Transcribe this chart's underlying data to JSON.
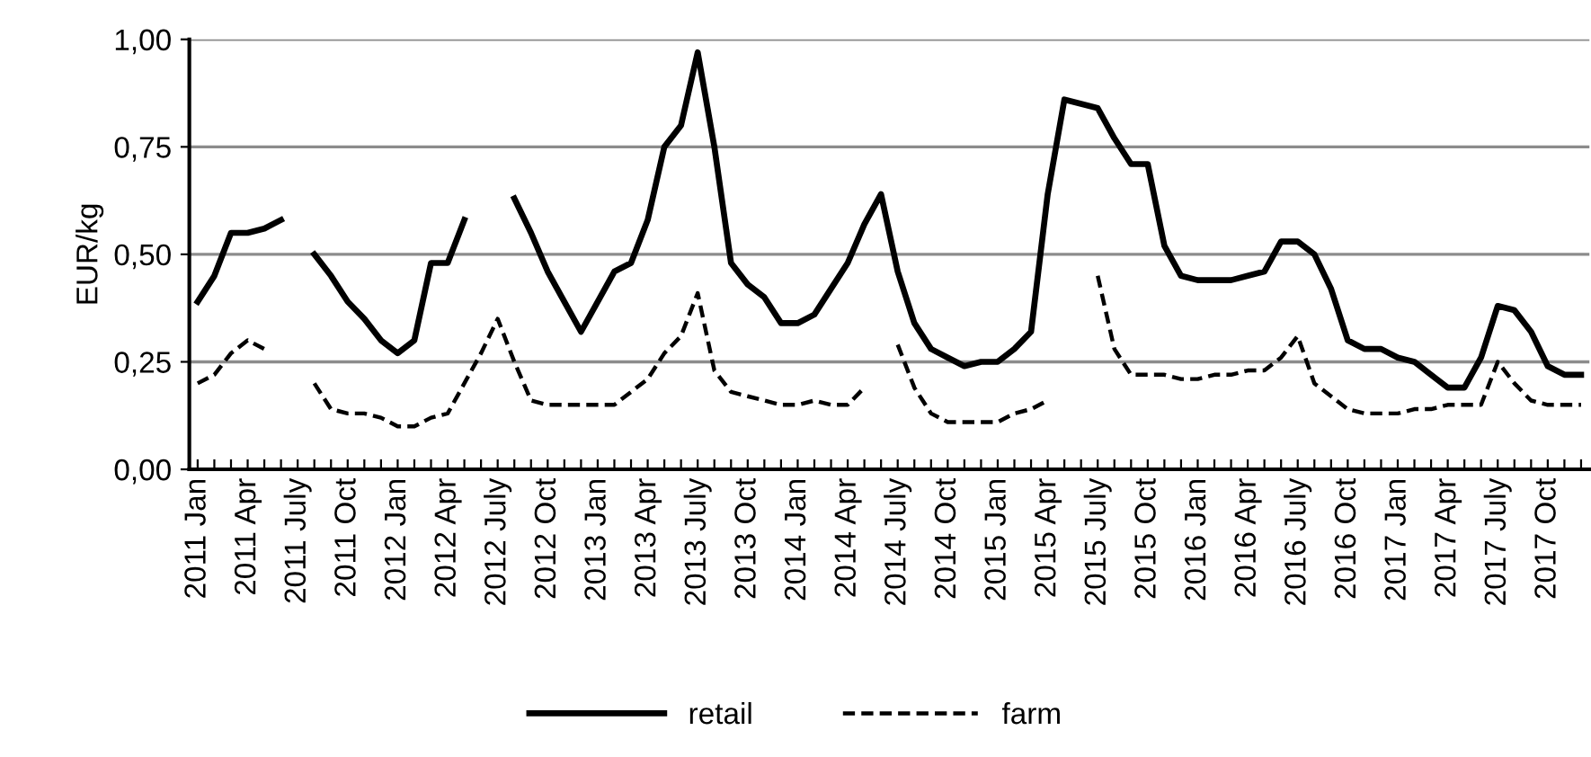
{
  "chart_data": {
    "type": "line",
    "ylabel": "EUR/kg",
    "categories": [
      "2011 Jan",
      null,
      null,
      "2011 Apr",
      null,
      null,
      "2011 July",
      null,
      null,
      "2011 Oct",
      null,
      null,
      "2012 Jan",
      null,
      null,
      "2012 Apr",
      null,
      null,
      "2012 July",
      null,
      null,
      "2012 Oct",
      null,
      null,
      "2013 Jan",
      null,
      null,
      "2013 Apr",
      null,
      null,
      "2013 July",
      null,
      null,
      "2013 Oct",
      null,
      null,
      "2014 Jan",
      null,
      null,
      "2014 Apr",
      null,
      null,
      "2014 July",
      null,
      null,
      "2014 Oct",
      null,
      null,
      "2015 Jan",
      null,
      null,
      "2015 Apr",
      null,
      null,
      "2015 July",
      null,
      null,
      "2015 Oct",
      null,
      null,
      "2016 Jan",
      null,
      null,
      "2016 Apr",
      null,
      null,
      "2016 July",
      null,
      null,
      "2016 Oct",
      null,
      null,
      "2017 Jan",
      null,
      null,
      "2017 Apr",
      null,
      null,
      "2017 July",
      null,
      null,
      "2017 Oct",
      null,
      null
    ],
    "series": [
      {
        "name": "retail",
        "color": "#000000",
        "line_style": "solid",
        "values": [
          0.39,
          0.45,
          0.55,
          0.55,
          0.56,
          0.58,
          null,
          0.5,
          0.45,
          0.39,
          0.35,
          0.3,
          0.27,
          0.3,
          0.48,
          0.48,
          0.58,
          null,
          null,
          0.63,
          0.55,
          0.46,
          0.39,
          0.32,
          0.39,
          0.46,
          0.48,
          0.58,
          0.75,
          0.8,
          0.97,
          0.75,
          0.48,
          0.43,
          0.4,
          0.34,
          0.34,
          0.36,
          0.42,
          0.48,
          0.57,
          0.64,
          0.46,
          0.34,
          0.28,
          0.26,
          0.24,
          0.25,
          0.25,
          0.28,
          0.32,
          0.64,
          0.86,
          0.85,
          0.84,
          0.77,
          0.71,
          0.71,
          0.52,
          0.45,
          0.44,
          0.44,
          0.44,
          0.45,
          0.46,
          0.53,
          0.53,
          0.5,
          0.42,
          0.3,
          0.28,
          0.28,
          0.26,
          0.25,
          0.22,
          0.19,
          0.19,
          0.26,
          0.38,
          0.37,
          0.32,
          0.24,
          0.22,
          0.22
        ]
      },
      {
        "name": "farm",
        "color": "#000000",
        "line_style": "dashed",
        "values": [
          0.2,
          0.22,
          0.27,
          0.3,
          0.28,
          null,
          null,
          0.2,
          0.14,
          0.13,
          0.13,
          0.12,
          0.1,
          0.1,
          0.12,
          0.13,
          0.2,
          0.27,
          0.35,
          0.25,
          0.16,
          0.15,
          0.15,
          0.15,
          0.15,
          0.15,
          0.18,
          0.21,
          0.27,
          0.31,
          0.41,
          0.23,
          0.18,
          0.17,
          0.16,
          0.15,
          0.15,
          0.16,
          0.15,
          0.15,
          0.19,
          null,
          0.29,
          0.19,
          0.13,
          0.11,
          0.11,
          0.11,
          0.11,
          0.13,
          0.14,
          0.16,
          null,
          null,
          0.45,
          0.28,
          0.22,
          0.22,
          0.22,
          0.21,
          0.21,
          0.22,
          0.22,
          0.23,
          0.23,
          0.26,
          0.31,
          0.2,
          0.17,
          0.14,
          0.13,
          0.13,
          0.13,
          0.14,
          0.14,
          0.15,
          0.15,
          0.15,
          0.25,
          0.2,
          0.16,
          0.15,
          0.15,
          0.15
        ]
      }
    ],
    "ylim": [
      0,
      1
    ],
    "yticks": [
      {
        "value": 0,
        "label": "0,00"
      },
      {
        "value": 0.25,
        "label": "0,25"
      },
      {
        "value": 0.5,
        "label": "0,50"
      },
      {
        "value": 0.75,
        "label": "0,75"
      },
      {
        "value": 1,
        "label": "1,00"
      }
    ],
    "grid": "y",
    "legend": "bottom",
    "marker": "none"
  }
}
